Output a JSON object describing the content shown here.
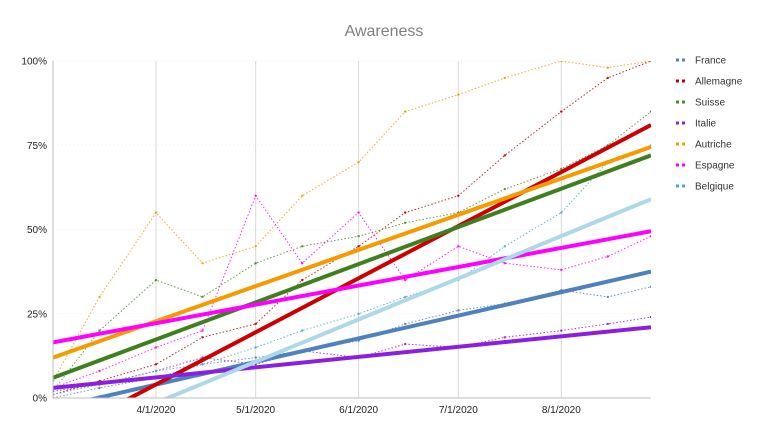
{
  "chart_data": {
    "type": "line",
    "title": "Awareness",
    "xlabel": "",
    "ylabel": "",
    "x_ticks": [
      "4/1/2020",
      "5/1/2020",
      "6/1/2020",
      "7/1/2020",
      "8/1/2020"
    ],
    "y_ticks": [
      "0%",
      "25%",
      "50%",
      "75%",
      "100%"
    ],
    "x_range": [
      "2020-03-01",
      "2020-08-28"
    ],
    "ylim": [
      0,
      100
    ],
    "grid": "vertical",
    "legend_position": "right",
    "colors": {
      "France": "#4F81BD",
      "Allemagne": "#C00000",
      "Suisse": "#4F8A2A",
      "Italie": "#8B1FE0",
      "Autriche": "#F59B00",
      "Espagne": "#FF00FF",
      "Belgique": "#4BACC6"
    },
    "trend_colors": {
      "France": "#4F81BD",
      "Allemagne": "#CC0000",
      "Suisse": "#3F7F1F",
      "Italie": "#8B1FE0",
      "Autriche": "#F59B00",
      "Espagne": "#FF00FF",
      "Belgique": "#ADD8E6"
    },
    "series": [
      {
        "name": "France",
        "values": [
          {
            "x": "2020-03-01",
            "y": 0
          },
          {
            "x": "2020-03-15",
            "y": 3
          },
          {
            "x": "2020-04-01",
            "y": 6
          },
          {
            "x": "2020-04-15",
            "y": 10
          },
          {
            "x": "2020-05-01",
            "y": 12
          },
          {
            "x": "2020-05-15",
            "y": 14
          },
          {
            "x": "2020-06-01",
            "y": 17
          },
          {
            "x": "2020-06-15",
            "y": 22
          },
          {
            "x": "2020-07-01",
            "y": 26
          },
          {
            "x": "2020-07-15",
            "y": 28
          },
          {
            "x": "2020-08-01",
            "y": 32
          },
          {
            "x": "2020-08-15",
            "y": 30
          },
          {
            "x": "2020-08-28",
            "y": 33
          }
        ]
      },
      {
        "name": "Allemagne",
        "values": [
          {
            "x": "2020-03-01",
            "y": 1
          },
          {
            "x": "2020-03-15",
            "y": 5
          },
          {
            "x": "2020-04-01",
            "y": 10
          },
          {
            "x": "2020-04-15",
            "y": 18
          },
          {
            "x": "2020-05-01",
            "y": 22
          },
          {
            "x": "2020-05-15",
            "y": 35
          },
          {
            "x": "2020-06-01",
            "y": 45
          },
          {
            "x": "2020-06-15",
            "y": 55
          },
          {
            "x": "2020-07-01",
            "y": 60
          },
          {
            "x": "2020-07-15",
            "y": 72
          },
          {
            "x": "2020-08-01",
            "y": 85
          },
          {
            "x": "2020-08-15",
            "y": 95
          },
          {
            "x": "2020-08-28",
            "y": 100
          }
        ]
      },
      {
        "name": "Suisse",
        "values": [
          {
            "x": "2020-03-01",
            "y": 2
          },
          {
            "x": "2020-03-15",
            "y": 20
          },
          {
            "x": "2020-04-01",
            "y": 35
          },
          {
            "x": "2020-04-15",
            "y": 30
          },
          {
            "x": "2020-05-01",
            "y": 40
          },
          {
            "x": "2020-05-15",
            "y": 45
          },
          {
            "x": "2020-06-01",
            "y": 48
          },
          {
            "x": "2020-06-15",
            "y": 52
          },
          {
            "x": "2020-07-01",
            "y": 55
          },
          {
            "x": "2020-07-15",
            "y": 62
          },
          {
            "x": "2020-08-01",
            "y": 68
          },
          {
            "x": "2020-08-15",
            "y": 75
          },
          {
            "x": "2020-08-28",
            "y": 85
          }
        ]
      },
      {
        "name": "Italie",
        "values": [
          {
            "x": "2020-03-01",
            "y": 2
          },
          {
            "x": "2020-03-15",
            "y": 4
          },
          {
            "x": "2020-04-01",
            "y": 8
          },
          {
            "x": "2020-04-15",
            "y": 12
          },
          {
            "x": "2020-05-01",
            "y": 10
          },
          {
            "x": "2020-05-15",
            "y": 14
          },
          {
            "x": "2020-06-01",
            "y": 12
          },
          {
            "x": "2020-06-15",
            "y": 16
          },
          {
            "x": "2020-07-01",
            "y": 15
          },
          {
            "x": "2020-07-15",
            "y": 18
          },
          {
            "x": "2020-08-01",
            "y": 20
          },
          {
            "x": "2020-08-15",
            "y": 22
          },
          {
            "x": "2020-08-28",
            "y": 24
          }
        ]
      },
      {
        "name": "Autriche",
        "values": [
          {
            "x": "2020-03-01",
            "y": 5
          },
          {
            "x": "2020-03-15",
            "y": 30
          },
          {
            "x": "2020-04-01",
            "y": 55
          },
          {
            "x": "2020-04-15",
            "y": 40
          },
          {
            "x": "2020-05-01",
            "y": 45
          },
          {
            "x": "2020-05-15",
            "y": 60
          },
          {
            "x": "2020-06-01",
            "y": 70
          },
          {
            "x": "2020-06-15",
            "y": 85
          },
          {
            "x": "2020-07-01",
            "y": 90
          },
          {
            "x": "2020-07-15",
            "y": 95
          },
          {
            "x": "2020-08-01",
            "y": 100
          },
          {
            "x": "2020-08-15",
            "y": 98
          },
          {
            "x": "2020-08-28",
            "y": 100
          }
        ]
      },
      {
        "name": "Espagne",
        "values": [
          {
            "x": "2020-03-01",
            "y": 3
          },
          {
            "x": "2020-03-15",
            "y": 8
          },
          {
            "x": "2020-04-01",
            "y": 15
          },
          {
            "x": "2020-04-15",
            "y": 20
          },
          {
            "x": "2020-05-01",
            "y": 60
          },
          {
            "x": "2020-05-15",
            "y": 40
          },
          {
            "x": "2020-06-01",
            "y": 55
          },
          {
            "x": "2020-06-15",
            "y": 35
          },
          {
            "x": "2020-07-01",
            "y": 45
          },
          {
            "x": "2020-07-15",
            "y": 40
          },
          {
            "x": "2020-08-01",
            "y": 38
          },
          {
            "x": "2020-08-15",
            "y": 42
          },
          {
            "x": "2020-08-28",
            "y": 48
          }
        ]
      },
      {
        "name": "Belgique",
        "values": [
          {
            "x": "2020-03-01",
            "y": 1
          },
          {
            "x": "2020-03-15",
            "y": 4
          },
          {
            "x": "2020-04-01",
            "y": 8
          },
          {
            "x": "2020-04-15",
            "y": 10
          },
          {
            "x": "2020-05-01",
            "y": 15
          },
          {
            "x": "2020-05-15",
            "y": 20
          },
          {
            "x": "2020-06-01",
            "y": 25
          },
          {
            "x": "2020-06-15",
            "y": 30
          },
          {
            "x": "2020-07-01",
            "y": 35
          },
          {
            "x": "2020-07-15",
            "y": 45
          },
          {
            "x": "2020-08-01",
            "y": 55
          },
          {
            "x": "2020-08-15",
            "y": 70
          },
          {
            "x": "2020-08-28",
            "y": 75
          }
        ]
      }
    ],
    "trendlines": [
      {
        "name": "France",
        "start": {
          "x": "2020-03-01",
          "y": -3
        },
        "end": {
          "x": "2020-08-28",
          "y": 37.5
        }
      },
      {
        "name": "Allemagne",
        "start": {
          "x": "2020-03-01",
          "y": -12
        },
        "end": {
          "x": "2020-08-28",
          "y": 81
        }
      },
      {
        "name": "Suisse",
        "start": {
          "x": "2020-03-01",
          "y": 6
        },
        "end": {
          "x": "2020-08-28",
          "y": 72
        }
      },
      {
        "name": "Italie",
        "start": {
          "x": "2020-03-01",
          "y": 3
        },
        "end": {
          "x": "2020-08-28",
          "y": 21
        }
      },
      {
        "name": "Autriche",
        "start": {
          "x": "2020-03-01",
          "y": 12
        },
        "end": {
          "x": "2020-08-28",
          "y": 74.5
        }
      },
      {
        "name": "Espagne",
        "start": {
          "x": "2020-03-01",
          "y": 16.5
        },
        "end": {
          "x": "2020-08-28",
          "y": 49.5
        }
      },
      {
        "name": "Belgique",
        "start": {
          "x": "2020-03-01",
          "y": -14
        },
        "end": {
          "x": "2020-08-28",
          "y": 59
        }
      }
    ]
  }
}
